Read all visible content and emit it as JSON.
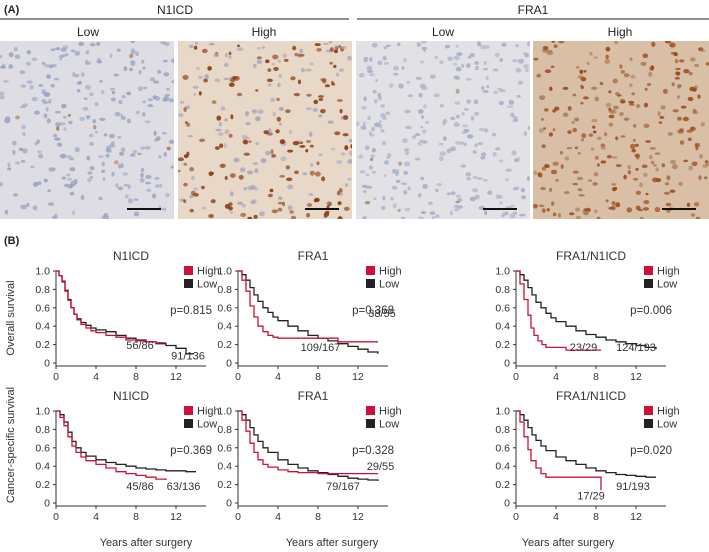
{
  "panel_a": {
    "label": "(A)",
    "groups": [
      {
        "title": "N1ICD",
        "levels": [
          "Low",
          "High"
        ]
      },
      {
        "title": "FRA1",
        "levels": [
          "Low",
          "High"
        ]
      }
    ],
    "tiles": [
      {
        "stain_level": "low",
        "palette": {
          "bg": "#dfdde4",
          "nuclei": "#9aa5c2",
          "brown": "#b07a4a"
        },
        "brown_fraction": 0.03
      },
      {
        "stain_level": "high",
        "palette": {
          "bg": "#e7d8c8",
          "nuclei": "#a9a6bd",
          "brown": "#8a3a12"
        },
        "brown_fraction": 0.55
      },
      {
        "stain_level": "low",
        "palette": {
          "bg": "#e2e1e6",
          "nuclei": "#a7afc6",
          "brown": "#b28a64"
        },
        "brown_fraction": 0.02
      },
      {
        "stain_level": "high",
        "palette": {
          "bg": "#d9bfa6",
          "nuclei": "#a67a55",
          "brown": "#9a4a1c"
        },
        "brown_fraction": 0.7
      }
    ]
  },
  "panel_b": {
    "label": "(B)",
    "ylabels": [
      "Overall survival",
      "Cancer-specific survival"
    ],
    "xlabel": "Years after surgery",
    "legend": {
      "high": "High",
      "low": "Low"
    },
    "colors": {
      "high": "#d0103a",
      "low": "#222222"
    }
  },
  "chart_data": [
    {
      "type": "line",
      "title": "N1ICD",
      "pvalue": "p=0.815",
      "xlim": [
        0,
        15
      ],
      "ylim": [
        0,
        1
      ],
      "xticks": [
        0,
        4,
        8,
        12
      ],
      "yticks": [
        0,
        0.2,
        0.4,
        0.6,
        0.8,
        1.0
      ],
      "series": [
        {
          "name": "High",
          "label": "56/86",
          "x": [
            0,
            0.3,
            0.6,
            0.9,
            1.2,
            1.5,
            1.8,
            2.1,
            2.5,
            3,
            3.5,
            4,
            5,
            6,
            7,
            8,
            9,
            10,
            11
          ],
          "y": [
            1,
            0.95,
            0.88,
            0.78,
            0.68,
            0.6,
            0.53,
            0.47,
            0.42,
            0.38,
            0.35,
            0.33,
            0.3,
            0.28,
            0.25,
            0.24,
            0.23,
            0.22,
            0.22
          ]
        },
        {
          "name": "Low",
          "label": "91/136",
          "x": [
            0,
            0.3,
            0.6,
            0.9,
            1.2,
            1.5,
            1.8,
            2.1,
            2.5,
            3,
            3.5,
            4,
            5,
            6,
            7,
            8,
            9,
            10,
            11,
            12,
            13,
            13.8
          ],
          "y": [
            1,
            0.95,
            0.89,
            0.79,
            0.69,
            0.6,
            0.53,
            0.48,
            0.44,
            0.41,
            0.38,
            0.36,
            0.34,
            0.3,
            0.27,
            0.25,
            0.23,
            0.21,
            0.19,
            0.16,
            0.1,
            0.1
          ]
        }
      ]
    },
    {
      "type": "line",
      "title": "FRA1",
      "pvalue": "p=0.368",
      "xlim": [
        0,
        15
      ],
      "ylim": [
        0,
        1
      ],
      "xticks": [
        0,
        4,
        8,
        12
      ],
      "yticks": [
        0,
        0.2,
        0.4,
        0.6,
        0.8,
        1.0
      ],
      "series": [
        {
          "name": "High",
          "label": "38/55",
          "x": [
            0,
            0.4,
            0.8,
            1.2,
            1.6,
            2,
            2.5,
            3,
            3.5,
            4,
            5,
            6,
            8,
            10,
            12,
            14
          ],
          "y": [
            1,
            0.9,
            0.78,
            0.62,
            0.5,
            0.4,
            0.34,
            0.3,
            0.28,
            0.27,
            0.27,
            0.27,
            0.27,
            0.23,
            0.23,
            0.23
          ]
        },
        {
          "name": "Low",
          "label": "109/167",
          "x": [
            0,
            0.4,
            0.8,
            1.2,
            1.6,
            2,
            2.5,
            3,
            3.5,
            4,
            5,
            6,
            7,
            8,
            9,
            10,
            11,
            12,
            13,
            14
          ],
          "y": [
            1,
            0.96,
            0.9,
            0.82,
            0.74,
            0.67,
            0.6,
            0.55,
            0.5,
            0.46,
            0.4,
            0.35,
            0.3,
            0.27,
            0.24,
            0.21,
            0.18,
            0.15,
            0.12,
            0.1
          ]
        }
      ]
    },
    {
      "type": "line",
      "title": "FRA1/N1ICD",
      "pvalue": "p=0.006",
      "xlim": [
        0,
        15
      ],
      "ylim": [
        0,
        1
      ],
      "xticks": [
        0,
        4,
        8,
        12
      ],
      "yticks": [
        0,
        0.2,
        0.4,
        0.6,
        0.8,
        1.0
      ],
      "series": [
        {
          "name": "High",
          "label": "23/29",
          "x": [
            0,
            0.4,
            0.8,
            1.2,
            1.5,
            1.8,
            2.2,
            2.6,
            3,
            4,
            5,
            6,
            7,
            8,
            8.5
          ],
          "y": [
            1,
            0.86,
            0.69,
            0.52,
            0.38,
            0.3,
            0.24,
            0.2,
            0.17,
            0.17,
            0.14,
            0.14,
            0.14,
            0.14,
            0.14
          ]
        },
        {
          "name": "Low",
          "label": "124/193",
          "x": [
            0,
            0.4,
            0.8,
            1.2,
            1.6,
            2,
            2.5,
            3,
            3.5,
            4,
            5,
            6,
            7,
            8,
            9,
            10,
            11,
            12,
            13,
            14
          ],
          "y": [
            1,
            0.96,
            0.9,
            0.82,
            0.74,
            0.66,
            0.6,
            0.54,
            0.49,
            0.45,
            0.4,
            0.35,
            0.31,
            0.28,
            0.25,
            0.23,
            0.21,
            0.19,
            0.17,
            0.15
          ]
        }
      ]
    },
    {
      "type": "line",
      "title": "N1ICD",
      "pvalue": "p=0.369",
      "xlim": [
        0,
        15
      ],
      "ylim": [
        0,
        1
      ],
      "xticks": [
        0,
        4,
        8,
        12
      ],
      "yticks": [
        0,
        0.2,
        0.4,
        0.6,
        0.8,
        1.0
      ],
      "series": [
        {
          "name": "High",
          "label": "45/86",
          "x": [
            0,
            0.4,
            0.8,
            1.2,
            1.6,
            2,
            2.5,
            3,
            4,
            5,
            6,
            7,
            8,
            9,
            10,
            11
          ],
          "y": [
            1,
            0.93,
            0.84,
            0.72,
            0.62,
            0.55,
            0.5,
            0.46,
            0.42,
            0.38,
            0.34,
            0.32,
            0.3,
            0.28,
            0.26,
            0.25
          ]
        },
        {
          "name": "Low",
          "label": "63/136",
          "x": [
            0,
            0.4,
            0.8,
            1.2,
            1.6,
            2,
            2.5,
            3,
            4,
            5,
            6,
            7,
            8,
            9,
            10,
            11,
            12,
            13,
            14
          ],
          "y": [
            1,
            0.96,
            0.88,
            0.77,
            0.67,
            0.6,
            0.55,
            0.51,
            0.47,
            0.44,
            0.42,
            0.4,
            0.38,
            0.37,
            0.36,
            0.35,
            0.35,
            0.34,
            0.34
          ]
        }
      ]
    },
    {
      "type": "line",
      "title": "FRA1",
      "pvalue": "p=0.328",
      "xlim": [
        0,
        15
      ],
      "ylim": [
        0,
        1
      ],
      "xticks": [
        0,
        4,
        8,
        12
      ],
      "yticks": [
        0,
        0.2,
        0.4,
        0.6,
        0.8,
        1.0
      ],
      "series": [
        {
          "name": "High",
          "label": "29/55",
          "x": [
            0,
            0.4,
            0.8,
            1.2,
            1.6,
            2,
            2.5,
            3,
            4,
            5,
            6,
            8,
            10,
            12,
            14
          ],
          "y": [
            1,
            0.9,
            0.78,
            0.65,
            0.55,
            0.47,
            0.42,
            0.39,
            0.36,
            0.34,
            0.33,
            0.32,
            0.32,
            0.32,
            0.32
          ]
        },
        {
          "name": "Low",
          "label": "79/167",
          "x": [
            0,
            0.4,
            0.8,
            1.2,
            1.6,
            2,
            2.5,
            3,
            4,
            5,
            6,
            7,
            8,
            9,
            10,
            11,
            12,
            13,
            14
          ],
          "y": [
            1,
            0.96,
            0.9,
            0.82,
            0.74,
            0.67,
            0.6,
            0.55,
            0.47,
            0.42,
            0.38,
            0.35,
            0.33,
            0.31,
            0.29,
            0.27,
            0.26,
            0.25,
            0.24
          ]
        }
      ]
    },
    {
      "type": "line",
      "title": "FRA1/N1ICD",
      "pvalue": "p=0.020",
      "xlim": [
        0,
        15
      ],
      "ylim": [
        0,
        1
      ],
      "xticks": [
        0,
        4,
        8,
        12
      ],
      "yticks": [
        0,
        0.2,
        0.4,
        0.6,
        0.8,
        1.0
      ],
      "series": [
        {
          "name": "High",
          "label": "17/29",
          "x": [
            0,
            0.4,
            0.8,
            1.2,
            1.5,
            2,
            2.5,
            3,
            4,
            5,
            6,
            7,
            8,
            8.5
          ],
          "y": [
            1,
            0.88,
            0.72,
            0.58,
            0.46,
            0.38,
            0.32,
            0.28,
            0.28,
            0.28,
            0.28,
            0.28,
            0.28,
            0.14
          ]
        },
        {
          "name": "Low",
          "label": "91/193",
          "x": [
            0,
            0.4,
            0.8,
            1.2,
            1.6,
            2,
            2.5,
            3,
            4,
            5,
            6,
            7,
            8,
            9,
            10,
            11,
            12,
            13,
            14
          ],
          "y": [
            1,
            0.96,
            0.9,
            0.82,
            0.74,
            0.68,
            0.62,
            0.57,
            0.5,
            0.46,
            0.42,
            0.38,
            0.35,
            0.33,
            0.31,
            0.3,
            0.29,
            0.28,
            0.28
          ]
        }
      ]
    }
  ]
}
